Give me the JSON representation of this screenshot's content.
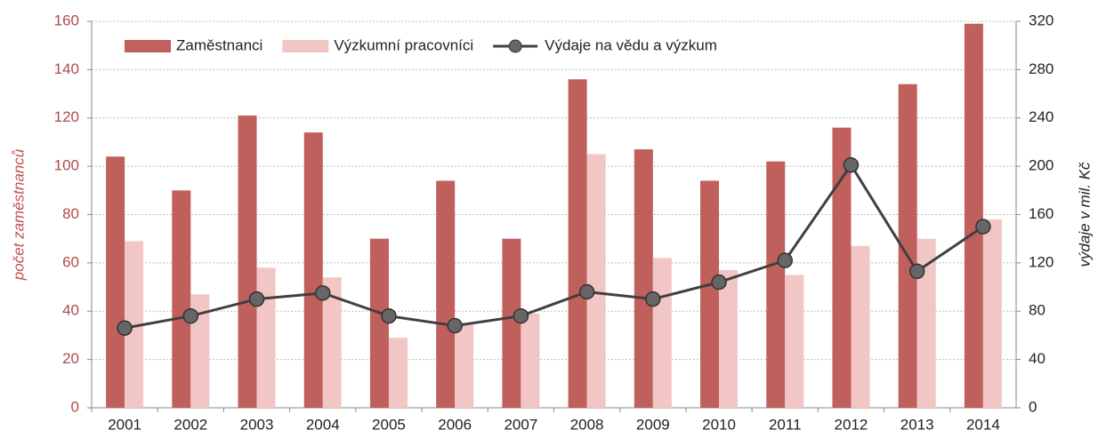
{
  "chart_data": {
    "type": "bar-line",
    "categories": [
      "2001",
      "2002",
      "2003",
      "2004",
      "2005",
      "2006",
      "2007",
      "2008",
      "2009",
      "2010",
      "2011",
      "2012",
      "2013",
      "2014"
    ],
    "series": [
      {
        "name": "Zaměstnanci",
        "color": "#c0605c",
        "values": [
          104,
          90,
          121,
          114,
          70,
          94,
          70,
          136,
          107,
          94,
          102,
          116,
          134,
          159
        ]
      },
      {
        "name": "Výzkumní pracovníci",
        "color": "#f2c6c5",
        "values": [
          69,
          47,
          58,
          54,
          29,
          35,
          39,
          105,
          62,
          57,
          55,
          67,
          70,
          78
        ]
      },
      {
        "name": "Výdaje na vědu a výzkum",
        "color": "#404040",
        "axis": "y2",
        "values": [
          66,
          76,
          90,
          95,
          76,
          68,
          76,
          96,
          90,
          104,
          122,
          201,
          113,
          150
        ]
      }
    ],
    "ylabel": "počet zaměstnanců",
    "y2label": "výdaje v mil. Kč",
    "ylim": [
      0,
      160
    ],
    "yticks": [
      0,
      20,
      40,
      60,
      80,
      100,
      120,
      140,
      160
    ],
    "y2lim": [
      0,
      320
    ],
    "y2ticks": [
      0,
      40,
      80,
      120,
      160,
      200,
      240,
      280,
      320
    ],
    "grid": true,
    "legend": "top"
  }
}
